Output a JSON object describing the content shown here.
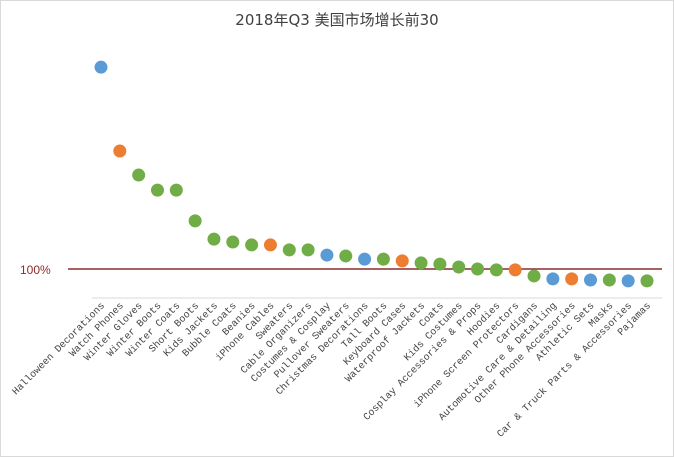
{
  "chart_data": {
    "type": "scatter",
    "title": "2018年Q3 美国市场增长前30",
    "xlabel": "",
    "ylabel": "",
    "reference_line": {
      "value": 100,
      "label": "100%",
      "color": "#8b2b2b"
    },
    "ylim": [
      0,
      830
    ],
    "grid": false,
    "legend": "none",
    "colors": {
      "blue": "#5b9bd5",
      "orange": "#ed7d31",
      "green": "#70ad47"
    },
    "categories": [
      "Halloween Decorations",
      "Watch Phones",
      "Winter Gloves",
      "Winter Boots",
      "Winter Coats",
      "Short Boots",
      "Kids Jackets",
      "Bubble Coats",
      "Beanies",
      "iPhone Cables",
      "Sweaters",
      "Cable Organizers",
      "Costumes & Cosplay",
      "Pullover Sweaters",
      "Christmas Decorations",
      "Tall Boots",
      "Keyboard Cases",
      "Waterproof Jackets",
      "Coats",
      "Kids Costumes",
      "Cosplay Accessories & Props",
      "Hoodies",
      "iPhone Screen Protectors",
      "Cardigans",
      "Automotive Care & Detailing",
      "Other Phone Accessories",
      "Athletic Sets",
      "Masks",
      "Car & Truck Parts & Accessories",
      "Pajamas"
    ],
    "values": [
      796,
      507,
      424,
      372,
      372,
      266,
      203,
      193,
      183,
      183,
      166,
      166,
      148,
      145,
      134,
      134,
      128,
      121,
      117,
      107,
      100,
      97,
      97,
      76,
      66,
      66,
      62,
      62,
      59,
      59
    ],
    "point_colors": [
      "blue",
      "orange",
      "green",
      "green",
      "green",
      "green",
      "green",
      "green",
      "green",
      "orange",
      "green",
      "green",
      "blue",
      "green",
      "blue",
      "green",
      "orange",
      "green",
      "green",
      "green",
      "green",
      "green",
      "orange",
      "green",
      "blue",
      "orange",
      "blue",
      "green",
      "blue",
      "green"
    ]
  }
}
